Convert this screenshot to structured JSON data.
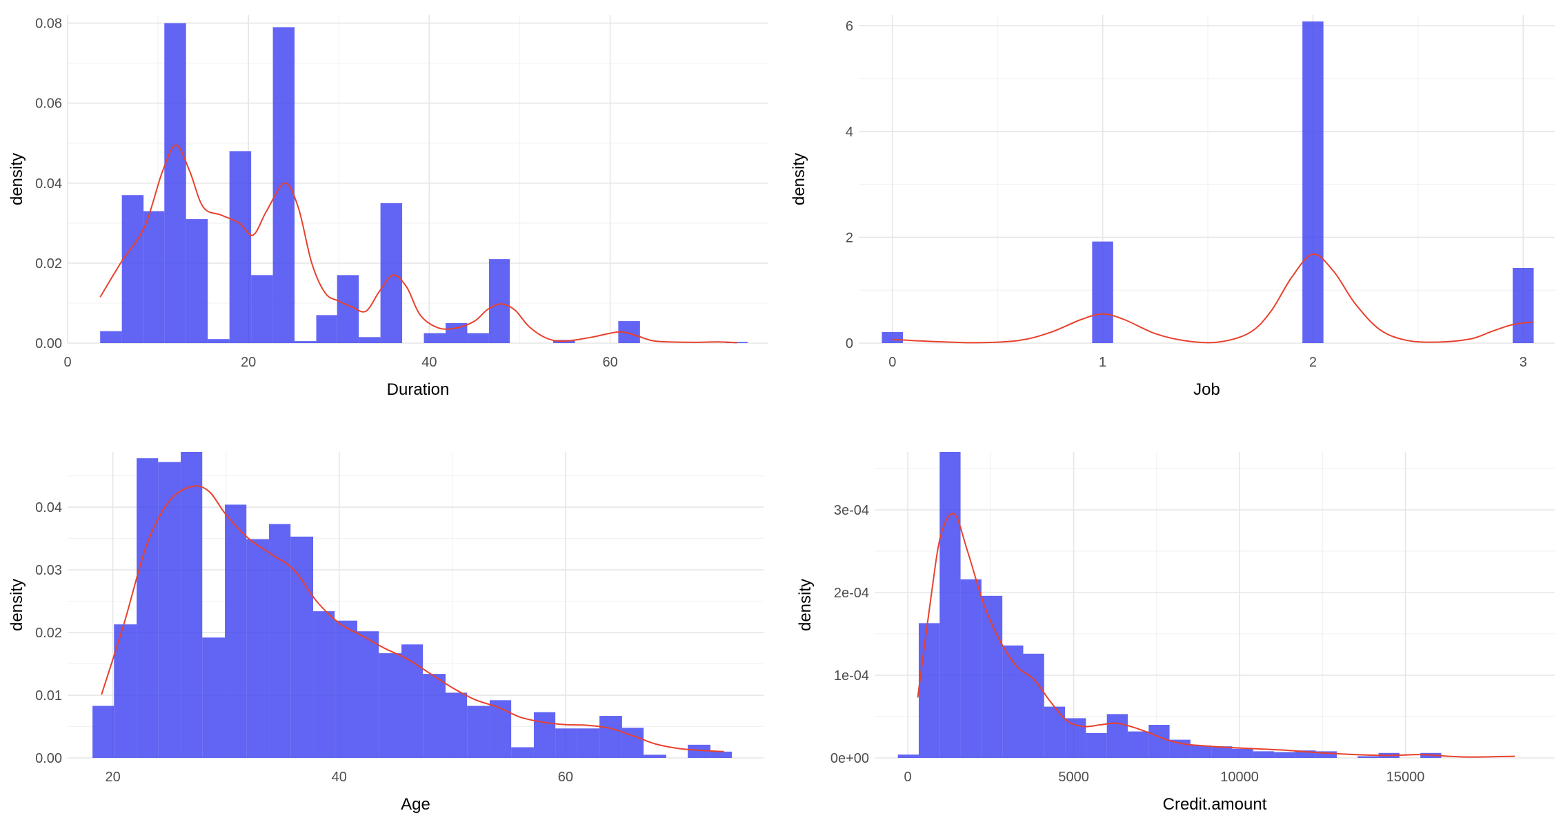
{
  "colors": {
    "bar": "#3b3ff0",
    "density": "#e8412c",
    "grid_major": "#e6e6e6",
    "grid_minor": "#f2f2f2",
    "tick_text": "#4d4d4d",
    "axis_title": "#000000"
  },
  "chart_data": [
    {
      "id": "duration",
      "type": "bar",
      "title": "",
      "xlabel": "Duration",
      "ylabel": "density",
      "xlim": [
        0,
        77.5
      ],
      "ylim": [
        0,
        0.082
      ],
      "xticks": [
        0,
        20,
        40,
        60
      ],
      "yticks": [
        0,
        0.02,
        0.04,
        0.06,
        0.08
      ],
      "ytick_labels": [
        "0.00",
        "0.02",
        "0.04",
        "0.06",
        "0.08"
      ],
      "bins": [
        [
          3.6,
          6,
          0.003
        ],
        [
          6,
          8.4,
          0.037
        ],
        [
          8.4,
          10.7,
          0.033
        ],
        [
          10.7,
          13.1,
          0.08
        ],
        [
          13.1,
          15.5,
          0.031
        ],
        [
          15.5,
          17.9,
          0.001
        ],
        [
          17.9,
          20.3,
          0.048
        ],
        [
          20.3,
          22.7,
          0.017
        ],
        [
          22.7,
          25.1,
          0.079
        ],
        [
          25.1,
          27.5,
          0.0005
        ],
        [
          27.5,
          29.8,
          0.007
        ],
        [
          29.8,
          32.2,
          0.017
        ],
        [
          32.2,
          34.6,
          0.0015
        ],
        [
          34.6,
          37,
          0.035
        ],
        [
          39.4,
          41.8,
          0.0025
        ],
        [
          41.8,
          44.2,
          0.005
        ],
        [
          44.2,
          46.6,
          0.0025
        ],
        [
          46.6,
          48.9,
          0.021
        ],
        [
          53.7,
          56.1,
          0.0008
        ],
        [
          60.9,
          63.3,
          0.0055
        ],
        [
          72.8,
          75.2,
          0.0003
        ]
      ],
      "density": [
        [
          3.6,
          0.0115
        ],
        [
          6,
          0.0205
        ],
        [
          8.5,
          0.029
        ],
        [
          10.5,
          0.043
        ],
        [
          12,
          0.0495
        ],
        [
          13.5,
          0.043
        ],
        [
          15,
          0.034
        ],
        [
          17,
          0.032
        ],
        [
          19,
          0.03
        ],
        [
          20.5,
          0.027
        ],
        [
          22,
          0.033
        ],
        [
          24,
          0.04
        ],
        [
          25.5,
          0.034
        ],
        [
          27,
          0.02
        ],
        [
          28.5,
          0.0125
        ],
        [
          30,
          0.0105
        ],
        [
          31.5,
          0.009
        ],
        [
          33,
          0.008
        ],
        [
          34.5,
          0.013
        ],
        [
          36,
          0.017
        ],
        [
          37.5,
          0.014
        ],
        [
          39,
          0.007
        ],
        [
          41,
          0.0038
        ],
        [
          43,
          0.0038
        ],
        [
          45,
          0.0055
        ],
        [
          46.5,
          0.0085
        ],
        [
          48,
          0.0098
        ],
        [
          49.5,
          0.0082
        ],
        [
          51,
          0.0042
        ],
        [
          53,
          0.0012
        ],
        [
          55,
          0.0005
        ],
        [
          58,
          0.0015
        ],
        [
          61,
          0.0028
        ],
        [
          63,
          0.0018
        ],
        [
          65,
          0.0005
        ],
        [
          69,
          0.0002
        ],
        [
          72,
          0.0003
        ],
        [
          74,
          0.0001
        ]
      ]
    },
    {
      "id": "job",
      "type": "bar",
      "title": "",
      "xlabel": "Job",
      "ylabel": "density",
      "xlim": [
        -0.16,
        3.15
      ],
      "ylim": [
        0,
        6.2
      ],
      "xticks": [
        0,
        1,
        2,
        3
      ],
      "yticks": [
        0,
        2,
        4,
        6
      ],
      "ytick_labels": [
        "0",
        "2",
        "4",
        "6"
      ],
      "bins": [
        [
          -0.05,
          0.05,
          0.21
        ],
        [
          0.95,
          1.05,
          1.92
        ],
        [
          1.95,
          2.05,
          6.08
        ],
        [
          2.95,
          3.05,
          1.42
        ]
      ],
      "density": [
        [
          0,
          0.07
        ],
        [
          0.2,
          0.03
        ],
        [
          0.4,
          0.008
        ],
        [
          0.6,
          0.05
        ],
        [
          0.75,
          0.2
        ],
        [
          0.9,
          0.45
        ],
        [
          1,
          0.55
        ],
        [
          1.1,
          0.45
        ],
        [
          1.25,
          0.18
        ],
        [
          1.4,
          0.04
        ],
        [
          1.55,
          0.02
        ],
        [
          1.7,
          0.2
        ],
        [
          1.8,
          0.6
        ],
        [
          1.9,
          1.25
        ],
        [
          2,
          1.68
        ],
        [
          2.1,
          1.35
        ],
        [
          2.2,
          0.75
        ],
        [
          2.32,
          0.25
        ],
        [
          2.45,
          0.05
        ],
        [
          2.6,
          0.02
        ],
        [
          2.75,
          0.08
        ],
        [
          2.85,
          0.22
        ],
        [
          2.95,
          0.35
        ],
        [
          3.05,
          0.4
        ]
      ]
    },
    {
      "id": "age",
      "type": "bar",
      "title": "",
      "xlabel": "Age",
      "ylabel": "density",
      "xlim": [
        16,
        77.5
      ],
      "ylim": [
        0,
        0.0488
      ],
      "xticks": [
        20,
        40,
        60
      ],
      "yticks": [
        0,
        0.01,
        0.02,
        0.03,
        0.04
      ],
      "ytick_labels": [
        "0.00",
        "0.01",
        "0.02",
        "0.03",
        "0.04"
      ],
      "bins": [
        [
          18.2,
          20.1,
          0.0083
        ],
        [
          20.1,
          22.1,
          0.0213
        ],
        [
          22.1,
          24,
          0.0478
        ],
        [
          24,
          26,
          0.0472
        ],
        [
          26,
          27.9,
          0.0488
        ],
        [
          27.9,
          29.9,
          0.0192
        ],
        [
          29.9,
          31.8,
          0.0404
        ],
        [
          31.8,
          33.8,
          0.0349
        ],
        [
          33.8,
          35.7,
          0.0373
        ],
        [
          35.7,
          37.7,
          0.0353
        ],
        [
          37.7,
          39.6,
          0.0234
        ],
        [
          39.6,
          41.6,
          0.0219
        ],
        [
          41.6,
          43.5,
          0.0202
        ],
        [
          43.5,
          45.5,
          0.0167
        ],
        [
          45.5,
          47.4,
          0.0181
        ],
        [
          47.4,
          49.4,
          0.0134
        ],
        [
          49.4,
          51.3,
          0.0104
        ],
        [
          51.3,
          53.3,
          0.0083
        ],
        [
          53.3,
          55.2,
          0.0092
        ],
        [
          55.2,
          57.2,
          0.0017
        ],
        [
          57.2,
          59.1,
          0.0073
        ],
        [
          59.1,
          61.1,
          0.0047
        ],
        [
          61.1,
          63,
          0.0047
        ],
        [
          63,
          65,
          0.0067
        ],
        [
          65,
          66.9,
          0.0048
        ],
        [
          66.9,
          68.9,
          0.0005
        ],
        [
          70.8,
          72.8,
          0.0021
        ],
        [
          72.8,
          74.7,
          0.001
        ]
      ],
      "density": [
        [
          19,
          0.0101
        ],
        [
          21,
          0.0215
        ],
        [
          23,
          0.034
        ],
        [
          25,
          0.041
        ],
        [
          27,
          0.0433
        ],
        [
          28.5,
          0.0425
        ],
        [
          30,
          0.0388
        ],
        [
          32,
          0.035
        ],
        [
          34,
          0.0325
        ],
        [
          36,
          0.03
        ],
        [
          38,
          0.025
        ],
        [
          40,
          0.0215
        ],
        [
          42,
          0.0195
        ],
        [
          44,
          0.0175
        ],
        [
          46,
          0.0158
        ],
        [
          48,
          0.0135
        ],
        [
          50,
          0.0112
        ],
        [
          52,
          0.0093
        ],
        [
          54,
          0.0081
        ],
        [
          56,
          0.0065
        ],
        [
          58,
          0.0057
        ],
        [
          60,
          0.0053
        ],
        [
          62,
          0.0052
        ],
        [
          64,
          0.0047
        ],
        [
          66,
          0.0035
        ],
        [
          68,
          0.0022
        ],
        [
          70,
          0.0015
        ],
        [
          72,
          0.0012
        ],
        [
          74,
          0.001
        ]
      ]
    },
    {
      "id": "credit",
      "type": "bar",
      "title": "",
      "xlabel": "Credit.amount",
      "ylabel": "density",
      "xlim": [
        -1000,
        19500
      ],
      "ylim": [
        0,
        0.00037
      ],
      "xticks": [
        0,
        5000,
        10000,
        15000
      ],
      "yticks": [
        0,
        0.0001,
        0.0002,
        0.0003
      ],
      "ytick_labels": [
        "0e+00",
        "1e-04",
        "2e-04",
        "3e-04"
      ],
      "bins": [
        [
          -300,
          330,
          4e-06
        ],
        [
          330,
          960,
          0.000163
        ],
        [
          960,
          1590,
          0.00037
        ],
        [
          1590,
          2220,
          0.000216
        ],
        [
          2220,
          2850,
          0.000196
        ],
        [
          2850,
          3480,
          0.000136
        ],
        [
          3480,
          4110,
          0.000126
        ],
        [
          4110,
          4740,
          6.2e-05
        ],
        [
          4740,
          5370,
          4.8e-05
        ],
        [
          5370,
          6000,
          3e-05
        ],
        [
          6000,
          6630,
          5.3e-05
        ],
        [
          6630,
          7260,
          3.2e-05
        ],
        [
          7260,
          7890,
          4e-05
        ],
        [
          7890,
          8520,
          2.2e-05
        ],
        [
          8520,
          9150,
          1.5e-05
        ],
        [
          9150,
          9780,
          1.4e-05
        ],
        [
          9780,
          10410,
          1.1e-05
        ],
        [
          10410,
          11040,
          8e-06
        ],
        [
          11040,
          11670,
          7e-06
        ],
        [
          11670,
          12300,
          9e-06
        ],
        [
          12300,
          12930,
          8e-06
        ],
        [
          13560,
          14190,
          2e-06
        ],
        [
          14190,
          14820,
          6e-06
        ],
        [
          15450,
          16080,
          6e-06
        ]
      ],
      "density": [
        [
          300,
          7.3e-05
        ],
        [
          700,
          0.000195
        ],
        [
          1000,
          0.00027
        ],
        [
          1400,
          0.000295
        ],
        [
          1800,
          0.00025
        ],
        [
          2300,
          0.000185
        ],
        [
          2800,
          0.00014
        ],
        [
          3300,
          0.00011
        ],
        [
          3800,
          9.5e-05
        ],
        [
          4300,
          6.8e-05
        ],
        [
          4800,
          4.5e-05
        ],
        [
          5300,
          3.8e-05
        ],
        [
          5800,
          4e-05
        ],
        [
          6300,
          4.2e-05
        ],
        [
          6800,
          3.7e-05
        ],
        [
          7300,
          3e-05
        ],
        [
          7800,
          2.2e-05
        ],
        [
          8300,
          1.7e-05
        ],
        [
          8800,
          1.5e-05
        ],
        [
          9500,
          1.3e-05
        ],
        [
          10500,
          1.1e-05
        ],
        [
          11500,
          9e-06
        ],
        [
          12500,
          6e-06
        ],
        [
          13500,
          4e-06
        ],
        [
          14500,
          3e-06
        ],
        [
          15500,
          4e-06
        ],
        [
          16300,
          2e-06
        ],
        [
          17000,
          1e-06
        ],
        [
          18300,
          2e-06
        ]
      ]
    }
  ]
}
